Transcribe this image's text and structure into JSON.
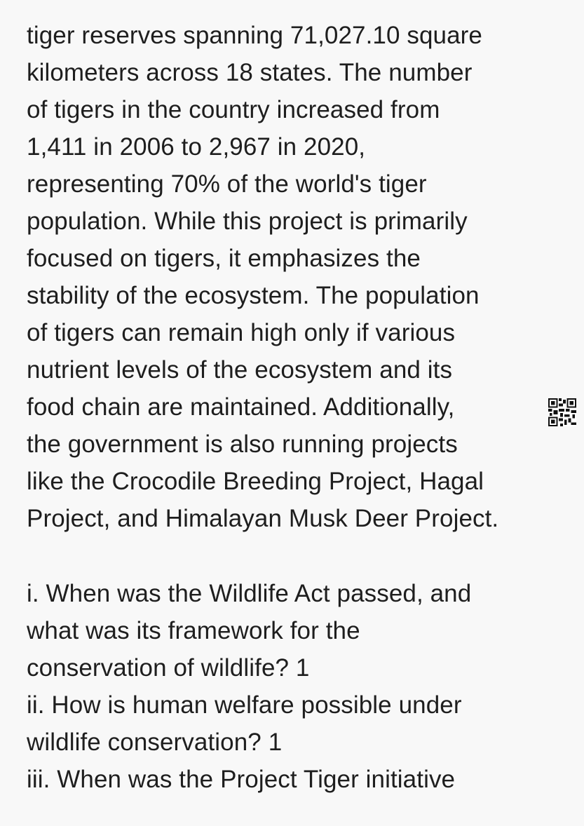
{
  "passage_lines": [
    "tiger reserves spanning 71,027.10 square",
    "kilometers across 18 states. The number",
    "of tigers in the country increased from",
    "1,411 in 2006 to 2,967 in 2020,",
    "representing 70% of the world's tiger",
    "population. While this project is primarily",
    "focused on tigers, it emphasizes the",
    "stability of the ecosystem. The population",
    "of tigers can remain high only if various",
    "nutrient levels of the ecosystem and its",
    "food chain are maintained. Additionally,",
    "the government is also running projects",
    "like the Crocodile Breeding Project, Hagal",
    "Project, and Himalayan Musk Deer Project."
  ],
  "question_lines": [
    "i. When was the Wildlife Act passed, and",
    "what was its framework for the",
    "conservation of wildlife? 1",
    "ii. How is human welfare possible under",
    "wildlife conservation? 1",
    "iii. When was the Project Tiger initiative"
  ],
  "qr_icon": "qr-code-icon"
}
